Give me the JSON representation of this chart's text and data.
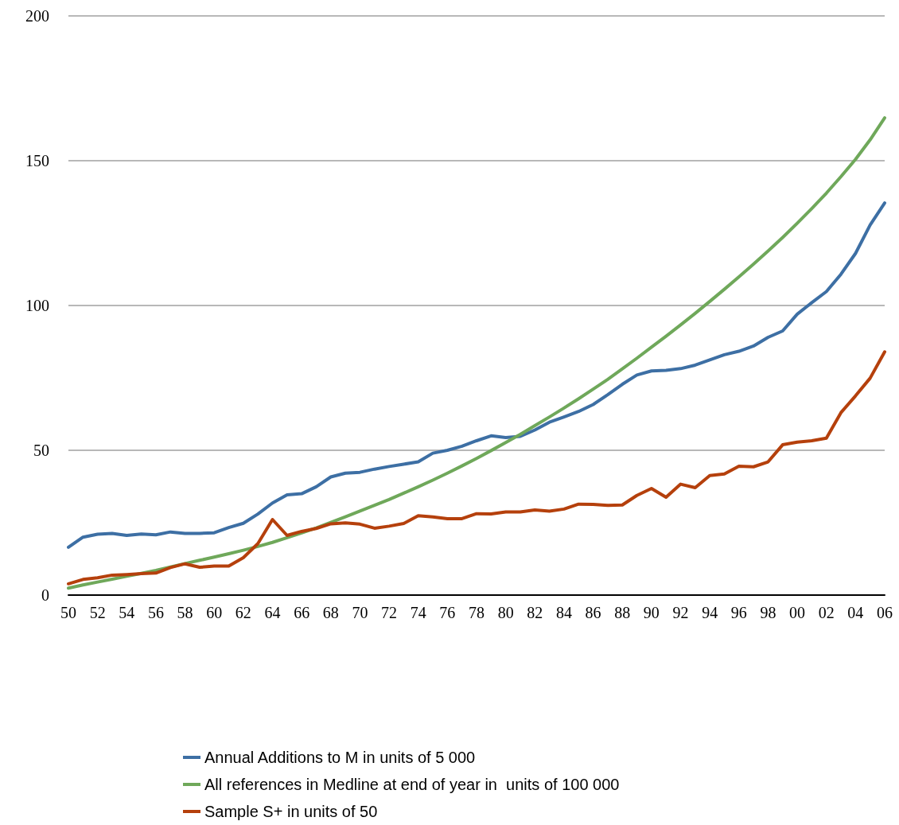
{
  "chart_data": {
    "type": "line",
    "categories": [
      "50",
      null,
      "52",
      null,
      "54",
      null,
      "56",
      null,
      "58",
      null,
      "60",
      null,
      "62",
      null,
      "64",
      null,
      "66",
      null,
      "68",
      null,
      "70",
      null,
      "72",
      null,
      "74",
      null,
      "76",
      null,
      "78",
      null,
      "80",
      null,
      "82",
      null,
      "84",
      null,
      "86",
      null,
      "88",
      null,
      "90",
      null,
      "92",
      null,
      "94",
      null,
      "96",
      null,
      "98",
      null,
      "00",
      null,
      "02",
      null,
      "04",
      null,
      "06"
    ],
    "series": [
      {
        "name": "Annual Additions to M in units of 5 000",
        "color": "#3d6fa4",
        "values": [
          16.5,
          20,
          21,
          21.3,
          20.6,
          21.1,
          20.8,
          21.8,
          21.3,
          21.3,
          21.5,
          23.3,
          24.8,
          28,
          31.8,
          34.6,
          35,
          37.4,
          40.8,
          42.1,
          42.4,
          43.5,
          44.4,
          45.2,
          46,
          49,
          50,
          51.4,
          53.3,
          55,
          54.4,
          54.8,
          57,
          59.7,
          61.5,
          63.4,
          65.8,
          69.2,
          72.8,
          76,
          77.4,
          77.6,
          78.2,
          79.4,
          81.2,
          83,
          84.2,
          86,
          89,
          91.2,
          97,
          101,
          104.8,
          110.8,
          118,
          127.8,
          135.4
        ]
      },
      {
        "name": "All references in Medline at end of year in  units of 100 000",
        "color": "#6fa85a",
        "values": [
          2.4,
          3.5,
          4.5,
          5.5,
          6.5,
          7.5,
          8.5,
          9.7,
          10.9,
          12,
          13.1,
          14.3,
          15.5,
          16.8,
          18.2,
          19.8,
          21.5,
          23.2,
          25.1,
          27,
          29,
          31,
          33,
          35.2,
          37.4,
          39.7,
          42.1,
          44.6,
          47.2,
          49.9,
          52.7,
          55.5,
          58.5,
          61.5,
          64.6,
          67.8,
          71.1,
          74.5,
          78.1,
          81.8,
          85.6,
          89.4,
          93.3,
          97.3,
          101.4,
          105.6,
          109.9,
          114.3,
          118.8,
          123.5,
          128.4,
          133.5,
          138.8,
          144.5,
          150.5,
          157.2,
          164.8
        ]
      },
      {
        "name": "Sample S+ in units of 50",
        "color": "#b5400c",
        "values": [
          3.9,
          5.4,
          6,
          6.9,
          7.1,
          7.4,
          7.6,
          9.5,
          10.8,
          9.6,
          10,
          10,
          12.9,
          17.8,
          26.1,
          20.6,
          22,
          23,
          24.6,
          24.9,
          24.5,
          23.1,
          23.8,
          24.7,
          27.4,
          27,
          26.4,
          26.4,
          28.1,
          28,
          28.7,
          28.7,
          29.4,
          29,
          29.7,
          31.4,
          31.3,
          31,
          31.1,
          34.4,
          36.8,
          33.8,
          38.3,
          37.1,
          41.3,
          41.8,
          44.5,
          44.3,
          46,
          51.9,
          52.8,
          53.3,
          54.2,
          63,
          68.8,
          74.9,
          84
        ]
      }
    ],
    "ylim": [
      0,
      200
    ],
    "yticks": [
      0,
      50,
      100,
      150,
      200
    ],
    "grid": "y",
    "legend": "bottom",
    "marker": "none",
    "line_style": "solid"
  }
}
